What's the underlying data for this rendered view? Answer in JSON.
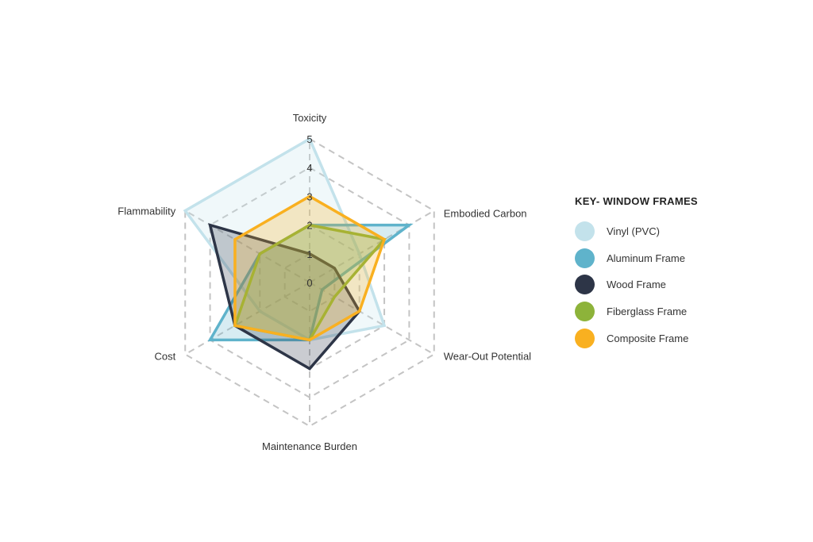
{
  "chart_data": {
    "type": "radar",
    "title": "",
    "axes": [
      "Toxicity",
      "Embodied Carbon",
      "Wear-Out Potential",
      "Maintenance Burden",
      "Cost",
      "Flammability"
    ],
    "ticks": [
      "0",
      "1",
      "2",
      "3",
      "4",
      "5"
    ],
    "range": [
      0,
      5
    ],
    "grid": true,
    "series": [
      {
        "name": "Vinyl (PVC)",
        "color": "#c3e2eb",
        "values": [
          5,
          2,
          3,
          2,
          2,
          5
        ]
      },
      {
        "name": "Aluminum Frame",
        "color": "#5fb3cb",
        "values": [
          2,
          4,
          0.5,
          2,
          4,
          2
        ]
      },
      {
        "name": "Wood Frame",
        "color": "#2d3547",
        "values": [
          1,
          1,
          2,
          3,
          3,
          4
        ]
      },
      {
        "name": "Fiberglass Frame",
        "color": "#8db33a",
        "values": [
          2,
          3,
          1,
          2,
          3,
          2
        ]
      },
      {
        "name": "Composite Frame",
        "color": "#f9b020",
        "values": [
          3,
          3,
          2,
          2,
          3,
          3
        ]
      }
    ]
  },
  "legend": {
    "title": "KEY- WINDOW FRAMES"
  }
}
